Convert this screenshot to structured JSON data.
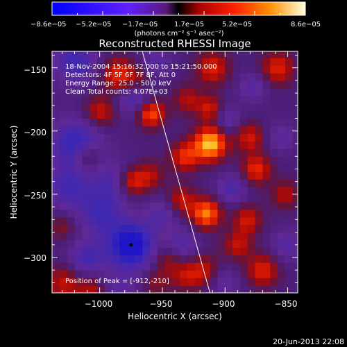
{
  "chart_data": {
    "type": "heatmap",
    "title": "Reconstructed RHESSI Image",
    "xlabel": "Heliocentric X (arcsec)",
    "ylabel": "Heliocentric Y (arcsec)",
    "xlim": [
      -1038,
      -842
    ],
    "ylim": [
      -328,
      -137
    ],
    "x_ticks": [
      -1000,
      -950,
      -900,
      -850
    ],
    "x_tick_labels": [
      "−1000",
      "−950",
      "−900",
      "−850"
    ],
    "y_ticks": [
      -150,
      -200,
      -250,
      -300
    ],
    "y_tick_labels": [
      "−150",
      "−200",
      "−250",
      "−300"
    ],
    "colorbar": {
      "range": [
        -8.6e-05,
        8.6e-05
      ],
      "tick_labels": [
        "−8.6e−05",
        "−5.2e−05",
        "−1.7e−05",
        "1.7e−05",
        "5.2e−05",
        "8.6e−05"
      ],
      "unit_label": "(photons cm⁻² s⁻¹ asec⁻²)"
    },
    "info_lines": [
      "18-Nov-2004 15:16:32.000 to 15:21:50.000",
      "Detectors: 4F 5F 6F 7F 8F, Att 0",
      "Energy Range: 25.0 - 50.0 keV",
      "Clean     Total counts: 4.07E+03"
    ],
    "peak_label": "Position of Peak = [-912,-210]",
    "minimum_marker": {
      "x": -975,
      "y": -290
    },
    "limb_line": [
      [
        -966,
        -137
      ],
      [
        -912,
        -328
      ]
    ],
    "grid_step": 6,
    "field": [
      {
        "x": -1020,
        "y": -145,
        "v": -0.55,
        "s": 12
      },
      {
        "x": -1018,
        "y": -210,
        "v": -0.7,
        "s": 14
      },
      {
        "x": -1025,
        "y": -245,
        "v": -0.5,
        "s": 12
      },
      {
        "x": -985,
        "y": -155,
        "v": 0.55,
        "s": 9
      },
      {
        "x": -1000,
        "y": -185,
        "v": 0.45,
        "s": 9
      },
      {
        "x": -1010,
        "y": -220,
        "v": 0.5,
        "s": 8
      },
      {
        "x": -968,
        "y": -160,
        "v": 0.3,
        "s": 8
      },
      {
        "x": -970,
        "y": -175,
        "v": -0.55,
        "s": 10
      },
      {
        "x": -960,
        "y": -185,
        "v": 0.8,
        "s": 8
      },
      {
        "x": -955,
        "y": -145,
        "v": -0.35,
        "s": 8
      },
      {
        "x": -990,
        "y": -240,
        "v": -0.4,
        "s": 12
      },
      {
        "x": -1000,
        "y": -265,
        "v": -0.5,
        "s": 12
      },
      {
        "x": -975,
        "y": -290,
        "v": -1.0,
        "s": 13
      },
      {
        "x": -1010,
        "y": -300,
        "v": -0.5,
        "s": 10
      },
      {
        "x": -985,
        "y": -325,
        "v": -0.3,
        "s": 10
      },
      {
        "x": -975,
        "y": -240,
        "v": 0.55,
        "s": 8
      },
      {
        "x": -960,
        "y": -235,
        "v": 0.35,
        "s": 8
      },
      {
        "x": -1030,
        "y": -275,
        "v": 0.25,
        "s": 8
      },
      {
        "x": -1028,
        "y": -320,
        "v": 0.4,
        "s": 10
      },
      {
        "x": -1005,
        "y": -325,
        "v": 0.35,
        "s": 8
      },
      {
        "x": -950,
        "y": -265,
        "v": -0.35,
        "s": 9
      },
      {
        "x": -945,
        "y": -300,
        "v": 0.35,
        "s": 9
      },
      {
        "x": -955,
        "y": -320,
        "v": 0.25,
        "s": 8
      },
      {
        "x": -930,
        "y": -175,
        "v": 0.35,
        "s": 8
      },
      {
        "x": -932,
        "y": -220,
        "v": 0.55,
        "s": 8
      },
      {
        "x": -935,
        "y": -255,
        "v": 0.45,
        "s": 8
      },
      {
        "x": -935,
        "y": -290,
        "v": -0.45,
        "s": 9
      },
      {
        "x": -932,
        "y": -315,
        "v": 0.3,
        "s": 8
      },
      {
        "x": -912,
        "y": -210,
        "v": 1.0,
        "s": 9
      },
      {
        "x": -910,
        "y": -150,
        "v": 0.5,
        "s": 9
      },
      {
        "x": -912,
        "y": -182,
        "v": 0.45,
        "s": 7
      },
      {
        "x": -915,
        "y": -265,
        "v": 0.8,
        "s": 8
      },
      {
        "x": -918,
        "y": -310,
        "v": 0.4,
        "s": 9
      },
      {
        "x": -898,
        "y": -190,
        "v": -0.35,
        "s": 7
      },
      {
        "x": -895,
        "y": -245,
        "v": -0.45,
        "s": 8
      },
      {
        "x": -890,
        "y": -290,
        "v": 0.4,
        "s": 8
      },
      {
        "x": -878,
        "y": -165,
        "v": -0.35,
        "s": 8
      },
      {
        "x": -880,
        "y": -205,
        "v": 0.45,
        "s": 8
      },
      {
        "x": -875,
        "y": -230,
        "v": 0.55,
        "s": 8
      },
      {
        "x": -882,
        "y": -270,
        "v": 0.45,
        "s": 8
      },
      {
        "x": -870,
        "y": -310,
        "v": 0.5,
        "s": 9
      },
      {
        "x": -858,
        "y": -150,
        "v": 0.5,
        "s": 9
      },
      {
        "x": -852,
        "y": -250,
        "v": 0.35,
        "s": 8
      },
      {
        "x": -850,
        "y": -290,
        "v": -0.35,
        "s": 9
      },
      {
        "x": -855,
        "y": -205,
        "v": -0.3,
        "s": 8
      },
      {
        "x": -900,
        "y": -320,
        "v": -0.3,
        "s": 8
      }
    ]
  },
  "footer": {
    "timestamp": "20-Jun-2013 22:08"
  }
}
